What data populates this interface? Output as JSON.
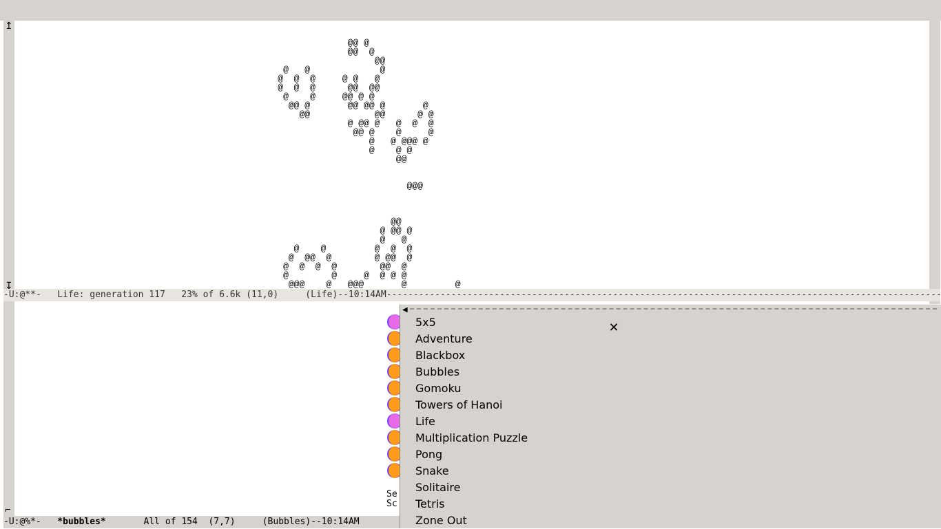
{
  "window": {
    "titlebar_bg": "#d6d2ce"
  },
  "life": {
    "ascii": "                                                              @@ @\n                                                              @@  @\n                                                                   @@\n                                                  @   @             @\n                                                 @  @  @     @ @   @\n                                                 @  @  @      @@  @@\n                                                  @    @     @@ @ @\n                                                   @@ @       @@ @@ @       @\n                                                     @@            @@      @ @\n                                                              @ @@ @   @  @  @\n                                                               @@ @    @     @\n                                                                  @   @ @@@ @\n                                                                  @    @ @\n                                                                       @@\n\n\n                                                                         @@@\n\n\n\n                                                                      @@\n                                                                    @ @@ @\n                                                                    @   @\n                                                    @    @         @  @  @\n                                                   @  @@  @        @ @@  @\n                                                  @  @  @  @        @@  @\n                                                  @        @     @  @ @ @\n                                                   @@@    @   @@@       @         @\n                                                     @@@@@    @@@ @      @@@     @ @\n                                                               @@ @         @   @   @\n                                                    @@ @          @    @@@ @@  @    @\n                                                    @@ @@@        @    @@    @ @  @@\n                                                   @@ @@@@ @@     @          @ @\n                                                              @@ @@",
    "modeline_prefix": "-U:@**-   ",
    "header": "Life: generation 117   23% of 6.6k (11,0)     (Life)--",
    "time": "10:14AM",
    "generation": 117,
    "percent": "23%",
    "size": "6.6k",
    "cursor": "(11,0)",
    "mode": "(Life)"
  },
  "bubbles": {
    "modeline_prefix": "-U:@%*-   ",
    "buffer_name": "*bubbles*",
    "position": "All of 154  (7,7)",
    "mode": "(Bubbles)",
    "time": "10:14AM",
    "footer1": "Se",
    "footer2": "Sc",
    "colors": {
      "orange": "#ff9b1a",
      "magenta": "#e66be6",
      "outline": "#6040ff"
    },
    "rows": [
      [
        "magenta"
      ],
      [
        "orange"
      ],
      [
        "orange"
      ],
      [
        "orange"
      ],
      [
        "orange"
      ],
      [
        "orange"
      ],
      [
        "magenta"
      ],
      [
        "orange"
      ],
      [
        "orange"
      ],
      [
        "orange"
      ]
    ]
  },
  "menu": {
    "bg": "#d6d2ce",
    "arrow": "◀",
    "close_glyph": "✕",
    "items": [
      "5x5",
      "Adventure",
      "Blackbox",
      "Bubbles",
      "Gomoku",
      "Towers of Hanoi",
      "Life",
      "Multiplication Puzzle",
      "Pong",
      "Snake",
      "Solitaire",
      "Tetris",
      "Zone Out"
    ]
  },
  "colors": {
    "chrome_bg": "#d6d2ce",
    "white": "#ffffff",
    "text": "#000000"
  }
}
